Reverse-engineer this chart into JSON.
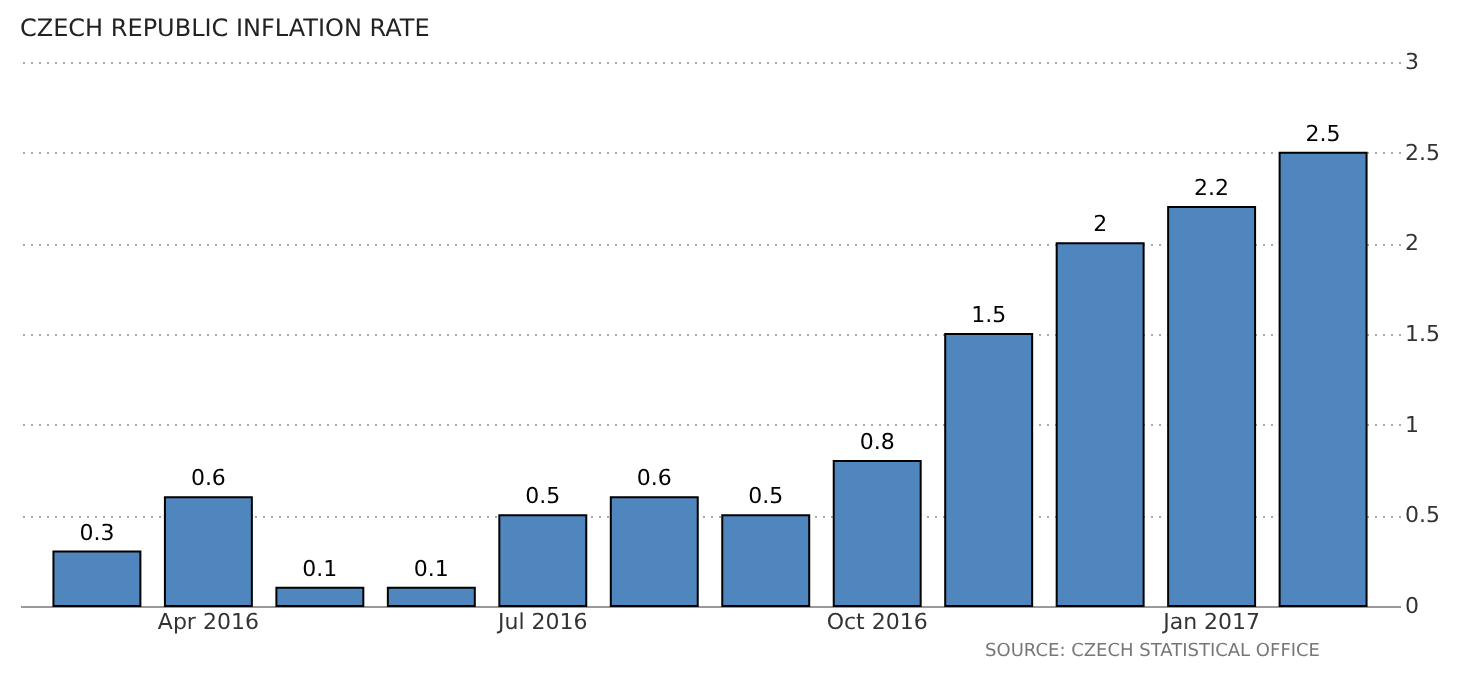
{
  "chart_data": {
    "type": "bar",
    "title": "CZECH REPUBLIC INFLATION RATE",
    "categories": [
      null,
      "Apr 2016",
      null,
      null,
      "Jul 2016",
      null,
      null,
      "Oct 2016",
      null,
      null,
      "Jan 2017",
      null
    ],
    "values": [
      0.3,
      0.6,
      0.1,
      0.1,
      0.5,
      0.6,
      0.5,
      0.8,
      1.5,
      2,
      2.2,
      2.5
    ],
    "color": "#4f86bd",
    "ylim": [
      0,
      3
    ],
    "yticks": [
      0,
      0.5,
      1,
      1.5,
      2,
      2.5,
      3
    ],
    "grid": "y",
    "data_labels": true,
    "annotations": [
      "SOURCE: CZECH STATISTICAL OFFICE"
    ]
  }
}
